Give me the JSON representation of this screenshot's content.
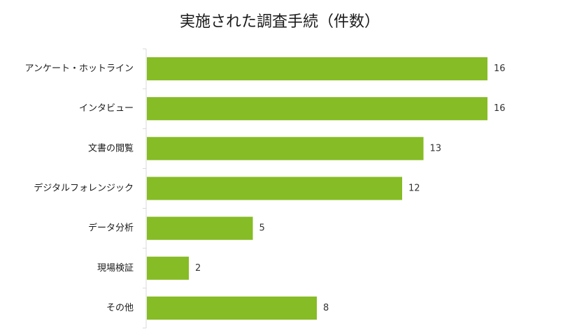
{
  "chart_data": {
    "type": "bar",
    "orientation": "horizontal",
    "title": "実施された調査手続（件数）",
    "categories": [
      "アンケート・ホットライン",
      "インタビュー",
      "文書の閲覧",
      "デジタルフォレンジック",
      "データ分析",
      "現場検証",
      "その他"
    ],
    "values": [
      16,
      16,
      13,
      12,
      5,
      2,
      8
    ],
    "xlim": [
      0,
      16
    ],
    "grid": false,
    "legend": "none",
    "data_labels": true,
    "colors": {
      "bar": "#86bc25",
      "axis": "#d9d9d9",
      "text": "#1a1a1a"
    }
  }
}
